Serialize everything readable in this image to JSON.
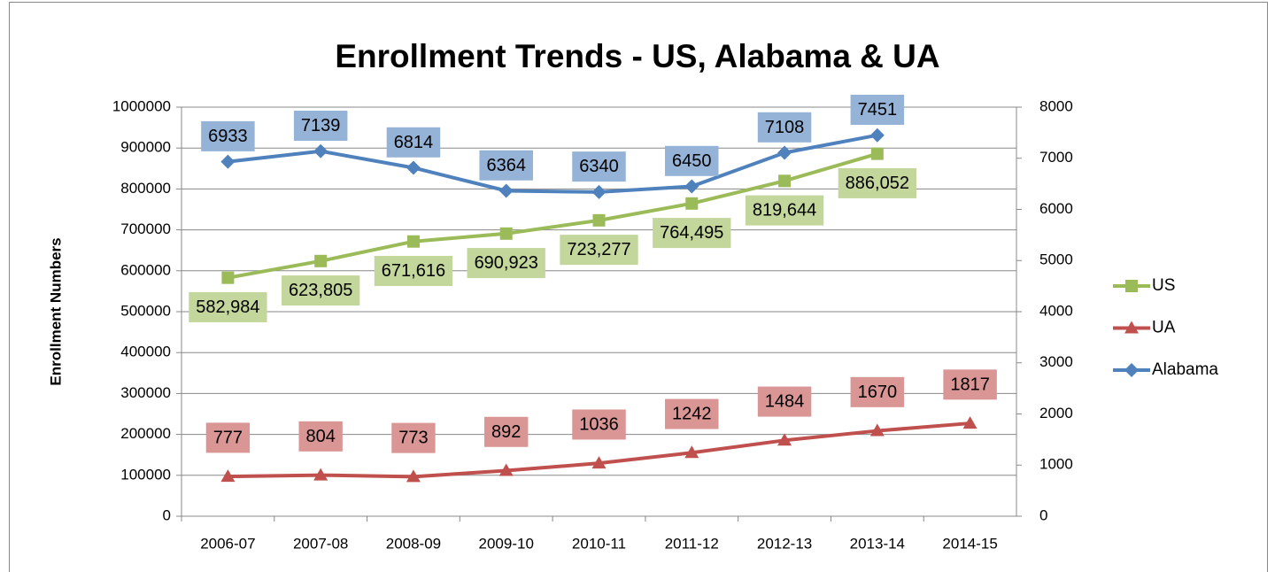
{
  "chart_data": {
    "type": "line",
    "title": "Enrollment Trends - US, Alabama & UA",
    "y_label": "Enrollment Numbers",
    "categories": [
      "2006-07",
      "2007-08",
      "2008-09",
      "2009-10",
      "2010-11",
      "2011-12",
      "2012-13",
      "2013-14",
      "2014-15"
    ],
    "series": [
      {
        "name": "US",
        "color": "#9bbb59",
        "marker": "square",
        "axis": "y",
        "values": [
          582984,
          623805,
          671616,
          690923,
          723277,
          764495,
          819644,
          886052,
          null
        ],
        "value_labels": [
          "582,984",
          "623,805",
          "671,616",
          "690,923",
          "723,277",
          "764,495",
          "819,644",
          "886,052",
          null
        ]
      },
      {
        "name": "UA",
        "color": "#c0504d",
        "marker": "triangle",
        "axis": "y2",
        "values": [
          777,
          804,
          773,
          892,
          1036,
          1242,
          1484,
          1670,
          1817
        ]
      },
      {
        "name": "Alabama",
        "color": "#4f81bd",
        "marker": "diamond",
        "axis": "y2",
        "values": [
          6933,
          7139,
          6814,
          6364,
          6340,
          6450,
          7108,
          7451,
          null
        ]
      }
    ],
    "ylim": [
      0,
      1000000
    ],
    "yticks": [
      0,
      100000,
      200000,
      300000,
      400000,
      500000,
      600000,
      700000,
      800000,
      900000,
      1000000
    ],
    "y2lim": [
      0,
      8000
    ],
    "y2ticks": [
      0,
      1000,
      2000,
      3000,
      4000,
      5000,
      6000,
      7000,
      8000
    ],
    "grid": true,
    "legend": "right"
  }
}
